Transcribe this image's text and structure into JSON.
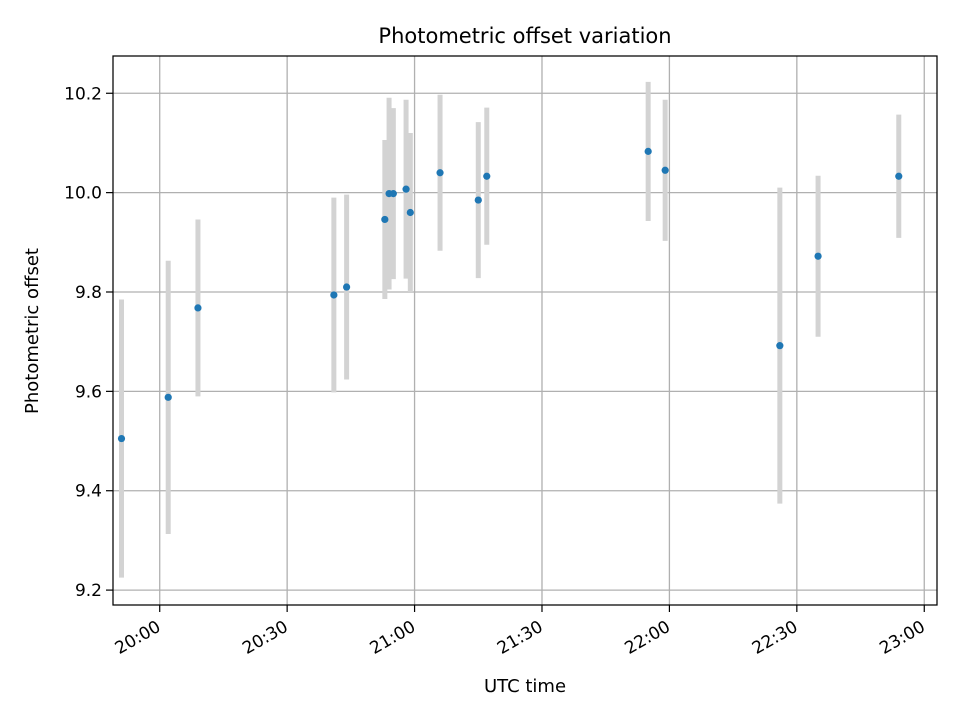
{
  "chart_data": {
    "type": "scatter",
    "title": "Photometric offset variation",
    "xlabel": "UTC time",
    "ylabel": "Photometric offset",
    "xlim": [
      "19:49",
      "23:03"
    ],
    "ylim": [
      9.17,
      10.275
    ],
    "grid": true,
    "x_ticks": [
      "20:00",
      "20:30",
      "21:00",
      "21:30",
      "22:00",
      "22:30",
      "23:00"
    ],
    "y_ticks": [
      "9.2",
      "9.4",
      "9.6",
      "9.8",
      "10.0",
      "10.2"
    ],
    "colors": {
      "point": "#1f77b4",
      "errorbar": "#d3d3d3",
      "grid": "#b0b0b0",
      "axes": "#000000"
    },
    "series": [
      {
        "points": [
          {
            "x": "19:51",
            "y": 9.505,
            "err": 0.28
          },
          {
            "x": "20:02",
            "y": 9.588,
            "err": 0.275
          },
          {
            "x": "20:09",
            "y": 9.768,
            "err": 0.178
          },
          {
            "x": "20:41",
            "y": 9.794,
            "err": 0.196
          },
          {
            "x": "20:44",
            "y": 9.81,
            "err": 0.186
          },
          {
            "x": "20:53",
            "y": 9.946,
            "err": 0.16
          },
          {
            "x": "20:54",
            "y": 9.998,
            "err": 0.193
          },
          {
            "x": "20:55",
            "y": 9.998,
            "err": 0.172
          },
          {
            "x": "20:58",
            "y": 10.007,
            "err": 0.18
          },
          {
            "x": "20:59",
            "y": 9.96,
            "err": 0.16
          },
          {
            "x": "21:06",
            "y": 10.04,
            "err": 0.157
          },
          {
            "x": "21:15",
            "y": 9.985,
            "err": 0.157
          },
          {
            "x": "21:17",
            "y": 10.033,
            "err": 0.138
          },
          {
            "x": "21:55",
            "y": 10.083,
            "err": 0.14
          },
          {
            "x": "21:59",
            "y": 10.045,
            "err": 0.142
          },
          {
            "x": "22:26",
            "y": 9.692,
            "err": 0.318
          },
          {
            "x": "22:35",
            "y": 9.872,
            "err": 0.162
          },
          {
            "x": "22:54",
            "y": 10.033,
            "err": 0.124
          }
        ]
      }
    ]
  }
}
